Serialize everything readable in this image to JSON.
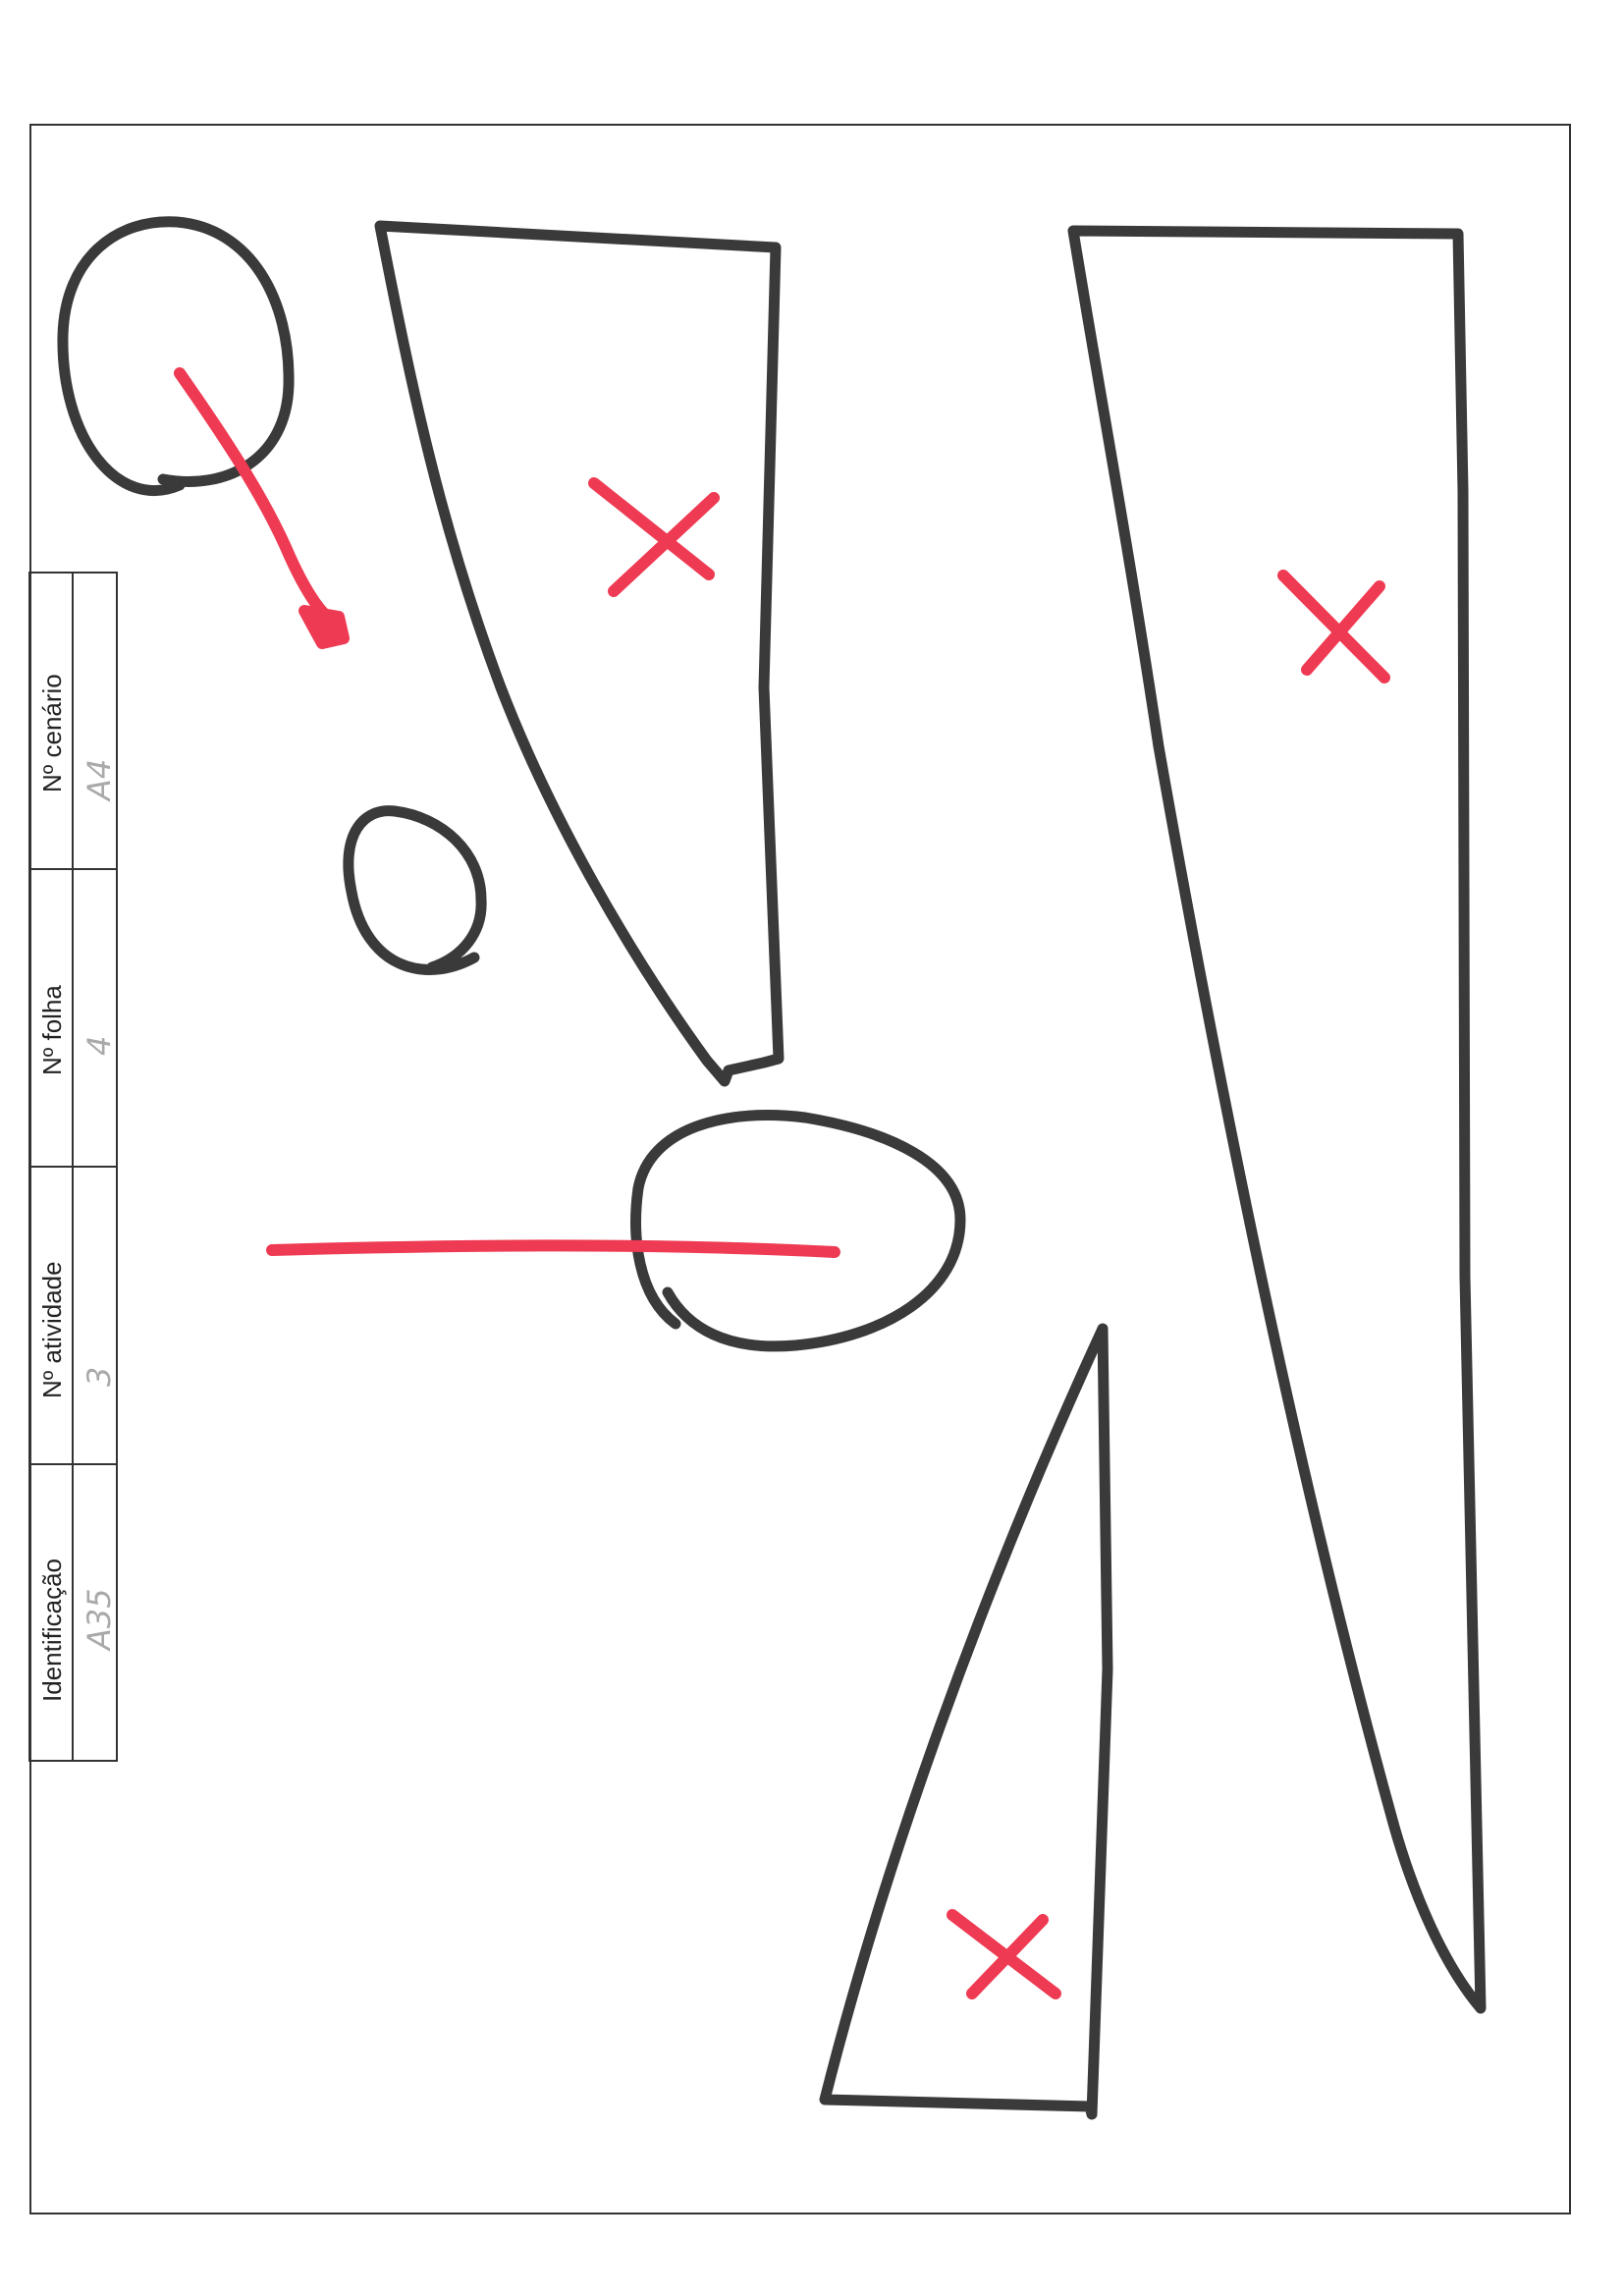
{
  "form": {
    "fields": [
      {
        "label": "Identificação",
        "value": "A35"
      },
      {
        "label": "Nº atividade",
        "value": "3"
      },
      {
        "label": "Nº folha",
        "value": "4"
      },
      {
        "label": "Nº cenário",
        "value": "A4"
      }
    ]
  },
  "colors": {
    "paper": "#ffffff",
    "frame": "#333333",
    "marker_black": "#3a3a3a",
    "marker_red": "#ee3a52",
    "pencil": "#a9a9a9"
  },
  "drawing": {
    "shapes": [
      {
        "kind": "circle",
        "ink": "black"
      },
      {
        "kind": "circle",
        "ink": "black"
      },
      {
        "kind": "circle",
        "ink": "black"
      },
      {
        "kind": "trapezoid",
        "ink": "black",
        "marked_with_x": true
      },
      {
        "kind": "trapezoid",
        "ink": "black",
        "marked_with_x": true
      },
      {
        "kind": "triangle",
        "ink": "black",
        "marked_with_x": true
      },
      {
        "kind": "arrow",
        "ink": "red"
      },
      {
        "kind": "line",
        "ink": "red"
      }
    ]
  }
}
